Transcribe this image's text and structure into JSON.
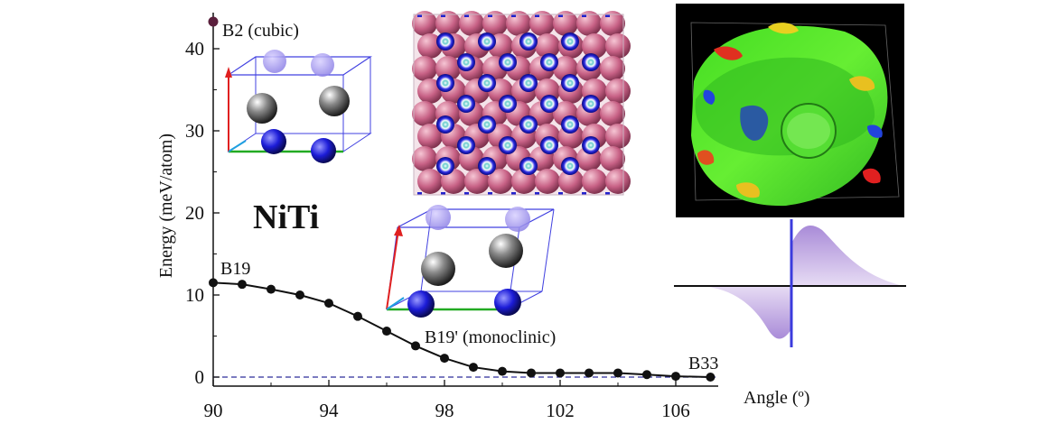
{
  "chart_data": {
    "type": "line",
    "title": "NiTi",
    "xlabel": "Angle (º)",
    "ylabel": "Energy (meV/atom)",
    "xlim": [
      90,
      107.5
    ],
    "ylim": [
      0,
      43
    ],
    "x_ticks": [
      90,
      94,
      98,
      102,
      106
    ],
    "y_ticks": [
      0,
      10,
      20,
      30,
      40
    ],
    "series": [
      {
        "x": [
          90,
          91,
          92,
          93,
          94,
          95,
          96,
          97,
          98,
          99,
          100,
          101,
          102,
          103,
          104,
          105,
          106,
          107.2
        ],
        "y": [
          11.5,
          11.3,
          10.7,
          10.0,
          9.0,
          7.4,
          5.6,
          3.8,
          2.3,
          1.2,
          0.7,
          0.5,
          0.5,
          0.5,
          0.5,
          0.3,
          0.1,
          0.0
        ]
      }
    ],
    "special_point": {
      "x": 90,
      "y": 43.3,
      "label": "B2 (cubic)",
      "color": "#5a1f3c"
    },
    "reference_line": {
      "y": 0,
      "style": "dashed",
      "color": "#2d2d9a"
    },
    "annotations": {
      "b19": "B19",
      "b19p": "B19' (monoclinic)",
      "b33": "B33"
    },
    "colors": {
      "line": "#111111",
      "marker": "#111111"
    }
  }
}
